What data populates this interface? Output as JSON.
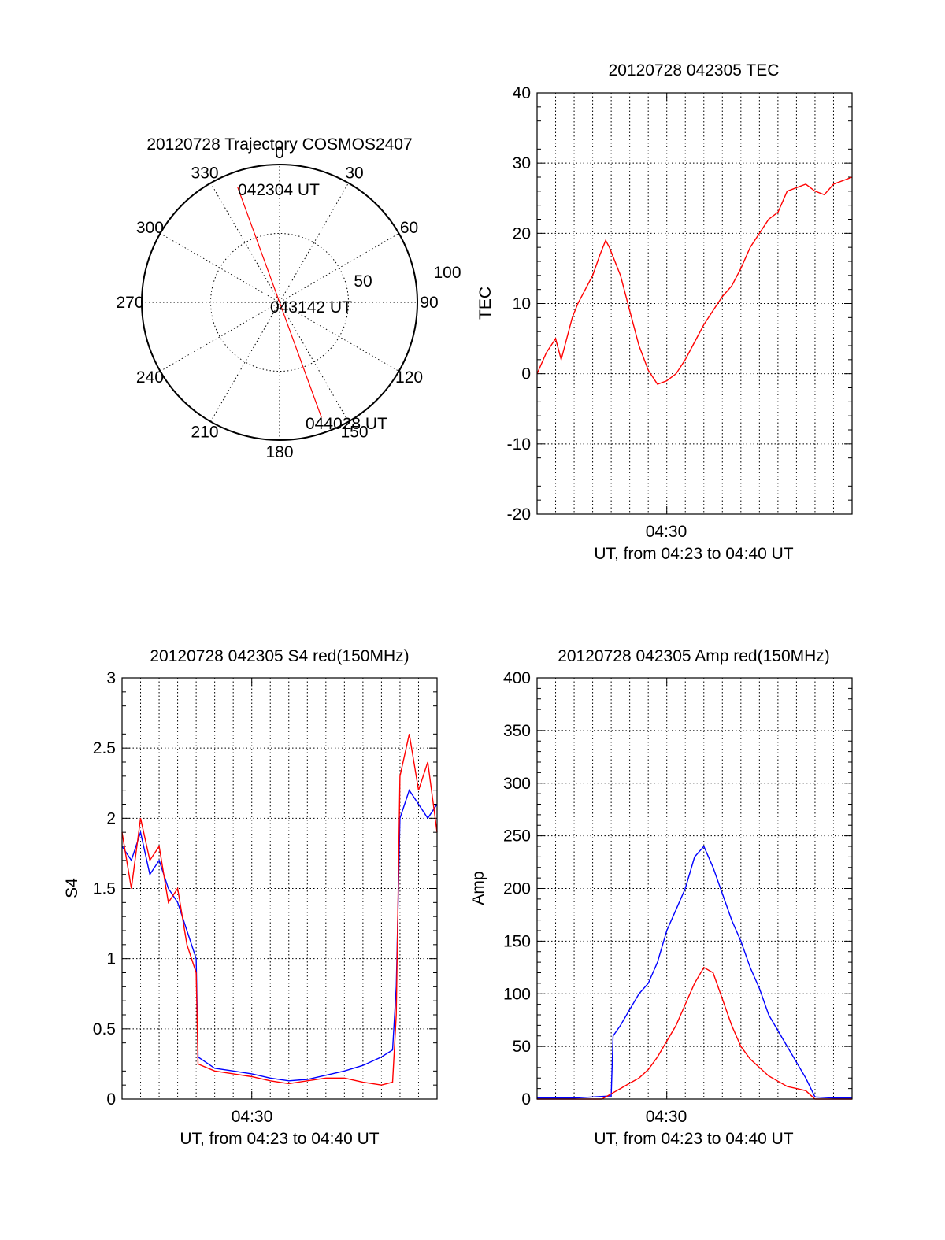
{
  "colors": {
    "red": "#ff0000",
    "blue": "#0000ff",
    "axis": "#000000"
  },
  "chart_data": [
    {
      "type": "polar",
      "title": "20120728 Trajectory COSMOS2407",
      "azimuth_labels": [
        "0",
        "30",
        "60",
        "90",
        "120",
        "150",
        "180",
        "210",
        "240",
        "270",
        "300",
        "330"
      ],
      "ring_labels": [
        "50",
        "100"
      ],
      "trajectory": {
        "start_label": "042304 UT",
        "mid_label": "043142 UT",
        "end_label": "044028 UT",
        "points": [
          {
            "az": 340,
            "el": 10
          },
          {
            "az": 160,
            "el": 10
          }
        ]
      }
    },
    {
      "type": "line",
      "title": "20120728 042305 TEC",
      "xlabel": "UT, from 04:23 to 04:40 UT",
      "ylabel": "TEC",
      "x_tick_label": "04:30",
      "xlim_minutes": [
        0,
        17
      ],
      "ylim": [
        -20,
        40
      ],
      "y_ticks": [
        "-20",
        "-10",
        "0",
        "10",
        "20",
        "30",
        "40"
      ],
      "series": [
        {
          "color": "red",
          "x": [
            0,
            0.5,
            1.0,
            1.3,
            1.5,
            1.9,
            2.2,
            2.6,
            3.0,
            3.4,
            3.7,
            3.9,
            4.5,
            5.0,
            5.5,
            6.0,
            6.5,
            7.0,
            7.5,
            8.0,
            8.5,
            9.0,
            9.5,
            10.0,
            10.5,
            11.0,
            11.5,
            12.0,
            12.5,
            13.0,
            13.5,
            14.5,
            15.0,
            15.5,
            16.0,
            17.0
          ],
          "y": [
            0,
            3,
            5,
            2,
            4,
            8,
            10,
            12,
            14,
            17,
            19,
            18,
            14,
            9,
            4,
            0.5,
            -1.5,
            -1,
            0,
            2,
            4.5,
            7,
            9,
            11,
            12.5,
            15,
            18,
            20,
            22,
            23,
            26,
            27,
            26,
            25.5,
            27,
            28
          ]
        }
      ]
    },
    {
      "type": "line",
      "title": "20120728 042305 S4 red(150MHz)",
      "xlabel": "UT, from 04:23 to 04:40 UT",
      "ylabel": "S4",
      "x_tick_label": "04:30",
      "xlim_minutes": [
        0,
        17
      ],
      "ylim": [
        0,
        3
      ],
      "y_ticks": [
        "0",
        "0.5",
        "1",
        "1.5",
        "2",
        "2.5",
        "3"
      ],
      "series": [
        {
          "color": "blue",
          "x": [
            0,
            0.5,
            1.0,
            1.5,
            2.0,
            2.5,
            3.0,
            3.5,
            4.0,
            4.1,
            5,
            6,
            7,
            8,
            9,
            10,
            11,
            12,
            13,
            14,
            14.6,
            14.8,
            15.0,
            15.5,
            16.0,
            16.5,
            17.0
          ],
          "y": [
            1.8,
            1.7,
            1.9,
            1.6,
            1.7,
            1.5,
            1.4,
            1.2,
            1.0,
            0.3,
            0.22,
            0.2,
            0.18,
            0.15,
            0.13,
            0.14,
            0.17,
            0.2,
            0.24,
            0.3,
            0.35,
            0.8,
            2.0,
            2.2,
            2.1,
            2.0,
            2.1
          ]
        },
        {
          "color": "red",
          "x": [
            0,
            0.5,
            1.0,
            1.5,
            2.0,
            2.5,
            3.0,
            3.5,
            4.0,
            4.1,
            5,
            6,
            7,
            8,
            9,
            10,
            11,
            12,
            13,
            14,
            14.6,
            14.8,
            15.0,
            15.5,
            16.0,
            16.5,
            17.0
          ],
          "y": [
            1.9,
            1.5,
            2.0,
            1.7,
            1.8,
            1.4,
            1.5,
            1.1,
            0.9,
            0.25,
            0.2,
            0.18,
            0.16,
            0.13,
            0.11,
            0.13,
            0.15,
            0.15,
            0.12,
            0.1,
            0.12,
            0.6,
            2.3,
            2.6,
            2.2,
            2.4,
            1.9
          ]
        }
      ]
    },
    {
      "type": "line",
      "title": "20120728 042305 Amp red(150MHz)",
      "xlabel": "UT, from 04:23 to 04:40 UT",
      "ylabel": "Amp",
      "x_tick_label": "04:30",
      "xlim_minutes": [
        0,
        17
      ],
      "ylim": [
        0,
        400
      ],
      "y_ticks": [
        "0",
        "50",
        "100",
        "150",
        "200",
        "250",
        "300",
        "350",
        "400"
      ],
      "series": [
        {
          "color": "blue",
          "x": [
            0,
            2,
            3,
            4,
            4.1,
            4.5,
            5,
            5.5,
            6,
            6.5,
            7,
            7.5,
            8,
            8.5,
            9,
            9.5,
            10,
            10.5,
            11,
            11.5,
            12,
            12.5,
            13,
            13.5,
            14,
            14.5,
            15,
            16,
            17
          ],
          "y": [
            1,
            1,
            2,
            3,
            60,
            70,
            85,
            100,
            110,
            130,
            160,
            180,
            200,
            230,
            240,
            220,
            195,
            170,
            150,
            125,
            105,
            80,
            65,
            50,
            35,
            20,
            2,
            1,
            1
          ]
        },
        {
          "color": "red",
          "x": [
            0,
            3.5,
            4,
            4.5,
            5,
            5.5,
            6,
            6.5,
            7,
            7.5,
            8,
            8.5,
            9,
            9.5,
            10,
            10.5,
            11,
            11.5,
            12,
            12.5,
            13,
            13.5,
            14,
            14.5,
            15,
            17
          ],
          "y": [
            0,
            0,
            5,
            10,
            15,
            20,
            28,
            40,
            55,
            70,
            90,
            110,
            125,
            120,
            95,
            70,
            50,
            38,
            30,
            22,
            17,
            12,
            10,
            8,
            0,
            0
          ]
        }
      ]
    }
  ]
}
